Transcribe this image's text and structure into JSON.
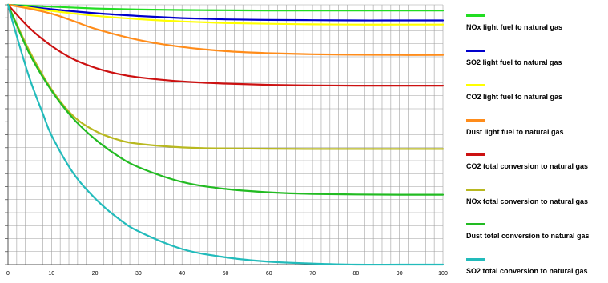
{
  "chart_data": {
    "type": "line",
    "title": "",
    "xlabel": "",
    "ylabel": "",
    "xlim": [
      0,
      100
    ],
    "ylim": [
      0,
      1
    ],
    "x_ticks": [
      "0",
      "10",
      "20",
      "30",
      "40",
      "50",
      "60",
      "70",
      "80",
      "90",
      "100"
    ],
    "grid": true,
    "legend_position": "right",
    "series": [
      {
        "name": "NOx  light fuel to natural gas",
        "color": "#22dd22",
        "x": [
          0,
          10,
          20,
          30,
          40,
          50,
          60,
          70,
          80,
          90,
          100
        ],
        "y": [
          1.0,
          0.993,
          0.986,
          0.982,
          0.98,
          0.979,
          0.978,
          0.978,
          0.978,
          0.978,
          0.978
        ]
      },
      {
        "name": "SO2 light fuel to natural gas",
        "color": "#0000cc",
        "x": [
          0,
          10,
          20,
          30,
          40,
          50,
          60,
          70,
          80,
          90,
          100
        ],
        "y": [
          1.0,
          0.983,
          0.968,
          0.957,
          0.949,
          0.944,
          0.942,
          0.941,
          0.94,
          0.94,
          0.94
        ]
      },
      {
        "name": "CO2 light fuel to natural gas",
        "color": "#ffff00",
        "x": [
          0,
          10,
          20,
          30,
          40,
          50,
          60,
          70,
          80,
          90,
          100
        ],
        "y": [
          1.0,
          0.977,
          0.958,
          0.945,
          0.936,
          0.93,
          0.927,
          0.925,
          0.924,
          0.924,
          0.924
        ]
      },
      {
        "name": "Dust light fuel to natural gas",
        "color": "#ff8c1a",
        "x": [
          0,
          5,
          10,
          15,
          20,
          30,
          40,
          50,
          60,
          70,
          80,
          90,
          100
        ],
        "y": [
          1.0,
          0.985,
          0.966,
          0.938,
          0.908,
          0.865,
          0.838,
          0.822,
          0.814,
          0.81,
          0.808,
          0.807,
          0.807
        ]
      },
      {
        "name": "CO2 total conversion to natural gas",
        "color": "#cc1111",
        "x": [
          0,
          5,
          10,
          15,
          20,
          25,
          30,
          40,
          50,
          60,
          70,
          80,
          90,
          100
        ],
        "y": [
          1.0,
          0.91,
          0.842,
          0.791,
          0.758,
          0.735,
          0.721,
          0.705,
          0.697,
          0.692,
          0.69,
          0.689,
          0.689,
          0.689
        ]
      },
      {
        "name": "NOx total conversion to natural gas",
        "color": "#b8b820",
        "x": [
          0,
          5,
          10,
          15,
          20,
          25,
          30,
          40,
          50,
          60,
          70,
          80,
          90,
          100
        ],
        "y": [
          1.0,
          0.82,
          0.675,
          0.572,
          0.515,
          0.482,
          0.465,
          0.451,
          0.447,
          0.446,
          0.445,
          0.445,
          0.445,
          0.445
        ]
      },
      {
        "name": "Dust total conversion to natural gas",
        "color": "#22bb22",
        "x": [
          0,
          5,
          10,
          15,
          20,
          25,
          30,
          40,
          50,
          60,
          70,
          80,
          90,
          100
        ],
        "y": [
          1.0,
          0.81,
          0.67,
          0.562,
          0.483,
          0.421,
          0.375,
          0.318,
          0.291,
          0.278,
          0.272,
          0.27,
          0.269,
          0.269
        ]
      },
      {
        "name": "SO2 total conversion to natural gas",
        "color": "#22bbbb",
        "x": [
          0,
          2,
          5,
          8,
          10,
          15,
          20,
          25,
          30,
          40,
          50,
          60,
          70,
          80,
          90,
          100
        ],
        "y": [
          1.0,
          0.88,
          0.715,
          0.582,
          0.498,
          0.352,
          0.255,
          0.182,
          0.128,
          0.06,
          0.028,
          0.011,
          0.004,
          0.0,
          0.0,
          0.0
        ]
      }
    ]
  }
}
